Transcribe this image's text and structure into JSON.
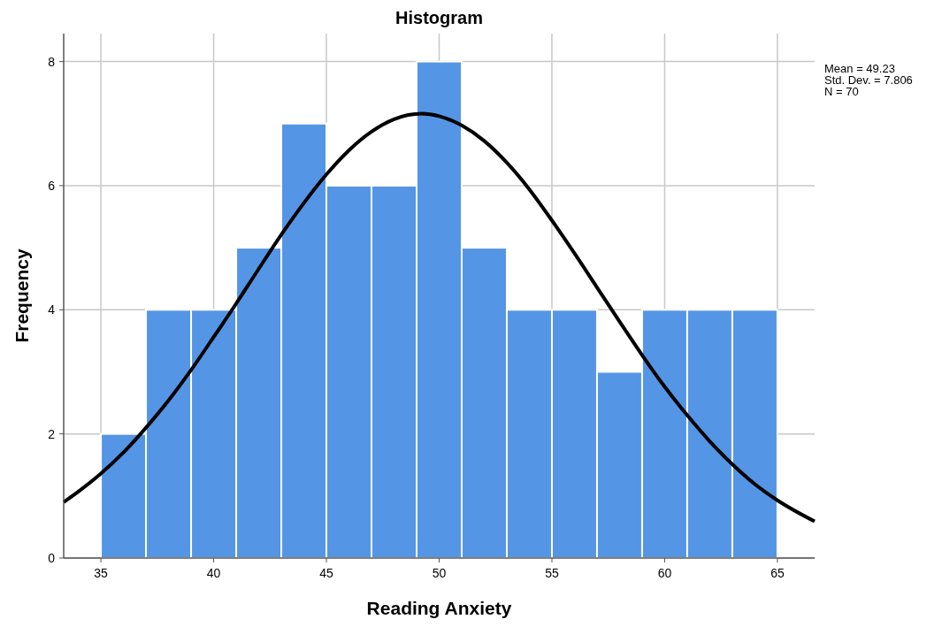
{
  "chart_data": {
    "type": "histogram",
    "title": "Histogram",
    "xlabel": "Reading Anxiety",
    "ylabel": "Frequency",
    "bins": [
      35,
      37,
      39,
      41,
      43,
      45,
      47,
      49,
      51,
      53,
      55,
      57,
      59,
      61,
      63,
      65
    ],
    "values": [
      2,
      4,
      4,
      5,
      7,
      6,
      6,
      8,
      5,
      4,
      4,
      3,
      4,
      4,
      4
    ],
    "color": "#5595e5",
    "series": [
      {
        "type": "line",
        "color": "#000000",
        "x": [
          33.35,
          34,
          35,
          36,
          37,
          38,
          39,
          40,
          41,
          42,
          43,
          44,
          45,
          46,
          47,
          48,
          49.23,
          50,
          51,
          52,
          53,
          54,
          55,
          56,
          57,
          58,
          59,
          60,
          61,
          62,
          63,
          64,
          65,
          66.65
        ],
        "values": [
          0.9,
          1.07,
          1.36,
          1.7,
          2.1,
          2.54,
          3.03,
          3.56,
          4.1,
          4.66,
          5.21,
          5.72,
          6.18,
          6.57,
          6.87,
          7.07,
          7.16,
          7.12,
          6.97,
          6.72,
          6.37,
          5.94,
          5.44,
          4.91,
          4.36,
          3.81,
          3.27,
          2.76,
          2.3,
          1.88,
          1.51,
          1.19,
          0.93,
          0.59
        ]
      }
    ],
    "xlim": [
      33.35,
      66.65
    ],
    "ylim": [
      0,
      8.45
    ],
    "xticks": [
      35,
      40,
      45,
      50,
      55,
      60,
      65
    ],
    "yticks": [
      0,
      2,
      4,
      6,
      8
    ],
    "grid": true,
    "annotations": [
      "Mean = 49.23",
      "Std. Dev. = 7.806",
      "N = 70"
    ]
  }
}
